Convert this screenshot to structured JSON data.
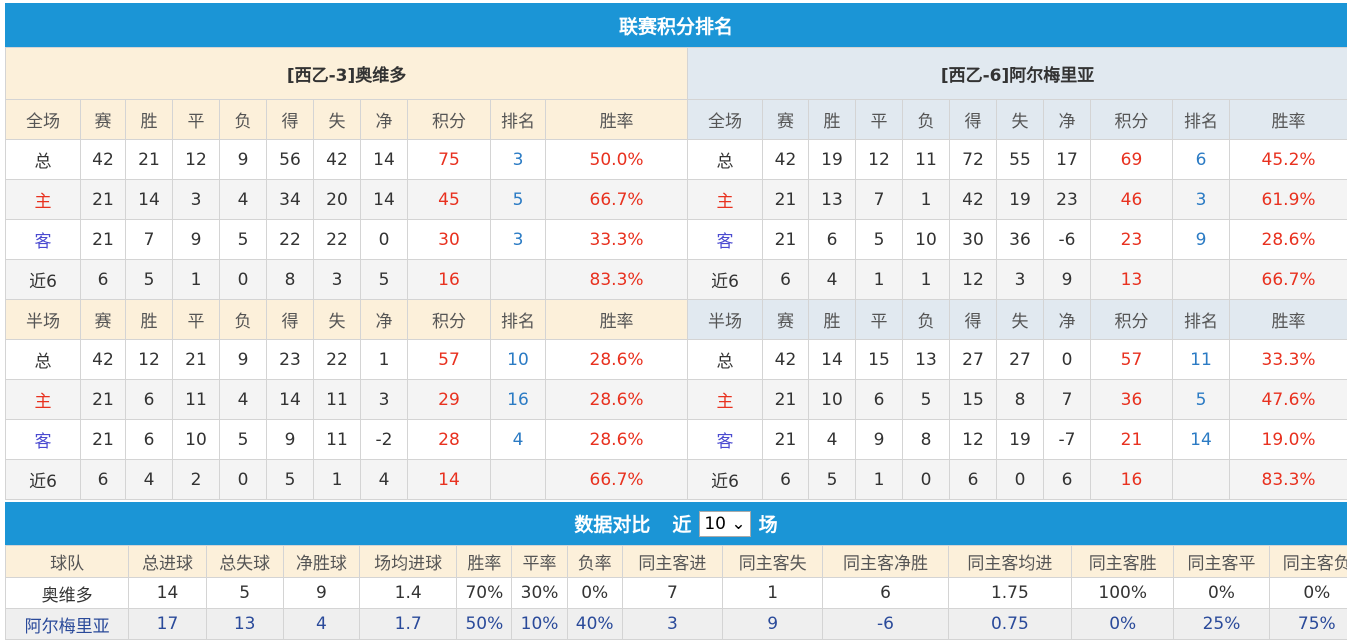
{
  "title": "联赛积分排名",
  "teams": [
    {
      "name": "[西乙-3]奥维多",
      "full": {
        "header": [
          "全场",
          "赛",
          "胜",
          "平",
          "负",
          "得",
          "失",
          "净",
          "积分",
          "排名",
          "胜率"
        ],
        "rows": [
          [
            "总",
            "42",
            "21",
            "12",
            "9",
            "56",
            "42",
            "14",
            "75",
            "3",
            "50.0%"
          ],
          [
            "主",
            "21",
            "14",
            "3",
            "4",
            "34",
            "20",
            "14",
            "45",
            "5",
            "66.7%"
          ],
          [
            "客",
            "21",
            "7",
            "9",
            "5",
            "22",
            "22",
            "0",
            "30",
            "3",
            "33.3%"
          ],
          [
            "近6",
            "6",
            "5",
            "1",
            "0",
            "8",
            "3",
            "5",
            "16",
            "",
            "83.3%"
          ]
        ]
      },
      "half": {
        "header": [
          "半场",
          "赛",
          "胜",
          "平",
          "负",
          "得",
          "失",
          "净",
          "积分",
          "排名",
          "胜率"
        ],
        "rows": [
          [
            "总",
            "42",
            "12",
            "21",
            "9",
            "23",
            "22",
            "1",
            "57",
            "10",
            "28.6%"
          ],
          [
            "主",
            "21",
            "6",
            "11",
            "4",
            "14",
            "11",
            "3",
            "29",
            "16",
            "28.6%"
          ],
          [
            "客",
            "21",
            "6",
            "10",
            "5",
            "9",
            "11",
            "-2",
            "28",
            "4",
            "28.6%"
          ],
          [
            "近6",
            "6",
            "4",
            "2",
            "0",
            "5",
            "1",
            "4",
            "14",
            "",
            "66.7%"
          ]
        ]
      }
    },
    {
      "name": "[西乙-6]阿尔梅里亚",
      "full": {
        "header": [
          "全场",
          "赛",
          "胜",
          "平",
          "负",
          "得",
          "失",
          "净",
          "积分",
          "排名",
          "胜率"
        ],
        "rows": [
          [
            "总",
            "42",
            "19",
            "12",
            "11",
            "72",
            "55",
            "17",
            "69",
            "6",
            "45.2%"
          ],
          [
            "主",
            "21",
            "13",
            "7",
            "1",
            "42",
            "19",
            "23",
            "46",
            "3",
            "61.9%"
          ],
          [
            "客",
            "21",
            "6",
            "5",
            "10",
            "30",
            "36",
            "-6",
            "23",
            "9",
            "28.6%"
          ],
          [
            "近6",
            "6",
            "4",
            "1",
            "1",
            "12",
            "3",
            "9",
            "13",
            "",
            "66.7%"
          ]
        ]
      },
      "half": {
        "header": [
          "半场",
          "赛",
          "胜",
          "平",
          "负",
          "得",
          "失",
          "净",
          "积分",
          "排名",
          "胜率"
        ],
        "rows": [
          [
            "总",
            "42",
            "14",
            "15",
            "13",
            "27",
            "27",
            "0",
            "57",
            "11",
            "33.3%"
          ],
          [
            "主",
            "21",
            "10",
            "6",
            "5",
            "15",
            "8",
            "7",
            "36",
            "5",
            "47.6%"
          ],
          [
            "客",
            "21",
            "4",
            "9",
            "8",
            "12",
            "19",
            "-7",
            "21",
            "14",
            "19.0%"
          ],
          [
            "近6",
            "6",
            "5",
            "1",
            "0",
            "6",
            "0",
            "6",
            "16",
            "",
            "83.3%"
          ]
        ]
      }
    }
  ],
  "compare": {
    "title": "数据对比",
    "prefix": "近",
    "selected": "10",
    "suffix": "场",
    "header": [
      "球队",
      "总进球",
      "总失球",
      "净胜球",
      "场均进球",
      "胜率",
      "平率",
      "负率",
      "同主客进",
      "同主客失",
      "同主客净胜",
      "同主客均进",
      "同主客胜",
      "同主客平",
      "同主客负"
    ],
    "rows": [
      [
        "奥维多",
        "14",
        "5",
        "9",
        "1.4",
        "70%",
        "30%",
        "0%",
        "7",
        "1",
        "6",
        "1.75",
        "100%",
        "0%",
        "0%"
      ],
      [
        "阿尔梅里亚",
        "17",
        "13",
        "4",
        "1.7",
        "50%",
        "10%",
        "40%",
        "3",
        "9",
        "-6",
        "0.75",
        "0%",
        "25%",
        "75%"
      ]
    ]
  },
  "colors": {
    "bar": "#1b95d6",
    "points": "#e8311f",
    "rank": "#2b7bc4"
  }
}
